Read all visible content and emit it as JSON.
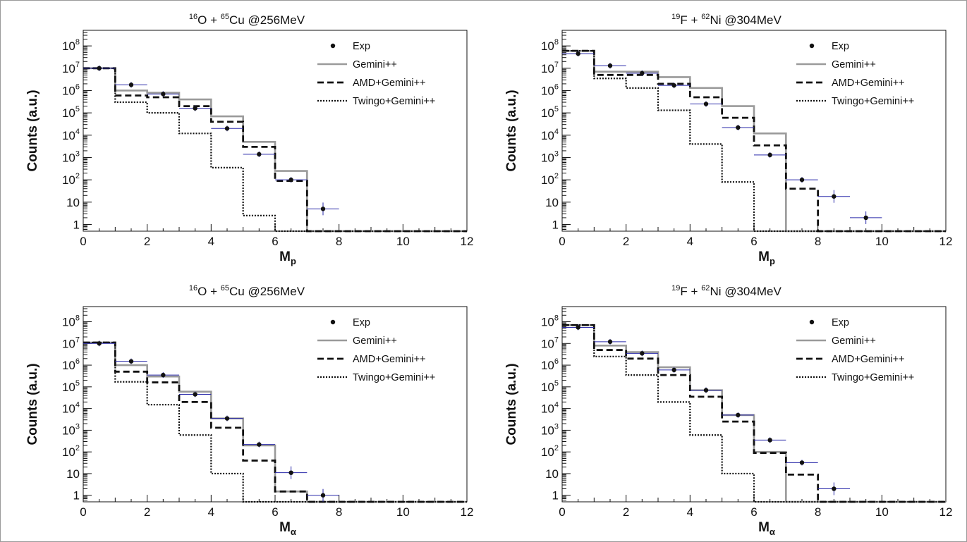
{
  "chart_data": [
    {
      "type": "step",
      "title": "¹⁶O + ⁶⁵Cu @256MeV",
      "title_parts": {
        "a_mass": "16",
        "a_elem": "O",
        "b_mass": "65",
        "b_elem": "Cu",
        "energy": "@256MeV"
      },
      "xlabel": "M",
      "xlabel_sub": "p",
      "ylabel": "Counts (a.u.)",
      "xlim": [
        0,
        12
      ],
      "ylim": [
        0.5,
        500000000
      ],
      "yscale": "log",
      "legend": "top-right",
      "series": [
        {
          "name": "Exp",
          "style": "points",
          "x": [
            0.5,
            1.5,
            2.5,
            3.5,
            4.5,
            5.5,
            6.5,
            7.5
          ],
          "values": [
            10000000,
            1800000,
            700000,
            160000,
            20000,
            1400,
            100,
            5
          ]
        },
        {
          "name": "Gemini++",
          "style": "solid-gray",
          "values": [
            10000000,
            1000000,
            800000,
            400000,
            70000,
            5000,
            250,
            0.5,
            0.5,
            0.5,
            0.5,
            0.5
          ]
        },
        {
          "name": "AMD+Gemini++",
          "style": "dashed",
          "values": [
            10000000,
            600000,
            500000,
            200000,
            40000,
            3000,
            90,
            0.5,
            0.5,
            0.5,
            0.5,
            0.5
          ]
        },
        {
          "name": "Twingo+Gemini++",
          "style": "dotted",
          "values": [
            10000000,
            300000,
            100000,
            12000,
            350,
            2.5,
            0.5,
            0.5,
            0.5,
            0.5,
            0.5,
            0.5
          ]
        }
      ]
    },
    {
      "type": "step",
      "title": "¹⁹F + ⁶²Ni @304MeV",
      "title_parts": {
        "a_mass": "19",
        "a_elem": "F",
        "b_mass": "62",
        "b_elem": "Ni",
        "energy": "@304MeV"
      },
      "xlabel": "M",
      "xlabel_sub": "p",
      "ylabel": "Counts (a.u.)",
      "xlim": [
        0,
        12
      ],
      "ylim": [
        0.5,
        500000000
      ],
      "yscale": "log",
      "legend": "top-right",
      "series": [
        {
          "name": "Exp",
          "style": "points",
          "x": [
            0.5,
            1.5,
            2.5,
            3.5,
            4.5,
            5.5,
            6.5,
            7.5,
            8.5,
            9.5
          ],
          "values": [
            45000000,
            13000000,
            6000000,
            1700000,
            250000,
            22000,
            1300,
            100,
            18,
            2
          ]
        },
        {
          "name": "Gemini++",
          "style": "solid-gray",
          "values": [
            60000000,
            7000000,
            7000000,
            4000000,
            1300000,
            200000,
            12000,
            0.5,
            0.5,
            0.5,
            0.5,
            0.5
          ]
        },
        {
          "name": "AMD+Gemini++",
          "style": "dashed",
          "values": [
            60000000,
            5000000,
            5000000,
            2000000,
            500000,
            60000,
            3500,
            40,
            0.5,
            0.5,
            0.5,
            0.5
          ]
        },
        {
          "name": "Twingo+Gemini++",
          "style": "dotted",
          "values": [
            60000000,
            3500000,
            1300000,
            130000,
            4000,
            80,
            0.5,
            0.5,
            0.5,
            0.5,
            0.5,
            0.5
          ]
        }
      ]
    },
    {
      "type": "step",
      "title": "¹⁶O + ⁶⁵Cu @256MeV",
      "title_parts": {
        "a_mass": "16",
        "a_elem": "O",
        "b_mass": "65",
        "b_elem": "Cu",
        "energy": "@256MeV"
      },
      "xlabel": "M",
      "xlabel_sub": "α",
      "ylabel": "Counts (a.u.)",
      "xlim": [
        0,
        12
      ],
      "ylim": [
        0.5,
        500000000
      ],
      "yscale": "log",
      "legend": "top-right",
      "series": [
        {
          "name": "Exp",
          "style": "points",
          "x": [
            0.5,
            1.5,
            2.5,
            3.5,
            4.5,
            5.5,
            6.5,
            7.5
          ],
          "values": [
            10000000,
            1500000,
            350000,
            45000,
            3500,
            220,
            11,
            1
          ]
        },
        {
          "name": "Gemini++",
          "style": "solid-gray",
          "values": [
            11000000,
            1000000,
            300000,
            60000,
            3500,
            200,
            1.5,
            0.5,
            0.5,
            0.5,
            0.5,
            0.5
          ]
        },
        {
          "name": "AMD+Gemini++",
          "style": "dashed",
          "values": [
            11000000,
            500000,
            160000,
            20000,
            1300,
            40,
            1.5,
            0.5,
            0.5,
            0.5,
            0.5,
            0.5
          ]
        },
        {
          "name": "Twingo+Gemini++",
          "style": "dotted",
          "values": [
            11000000,
            170000,
            15000,
            600,
            10,
            0.5,
            0.5,
            0.5,
            0.5,
            0.5,
            0.5,
            0.5
          ]
        }
      ]
    },
    {
      "type": "step",
      "title": "¹⁹F + ⁶²Ni @304MeV",
      "title_parts": {
        "a_mass": "19",
        "a_elem": "F",
        "b_mass": "62",
        "b_elem": "Ni",
        "energy": "@304MeV"
      },
      "xlabel": "M",
      "xlabel_sub": "α",
      "ylabel": "Counts (a.u.)",
      "xlim": [
        0,
        12
      ],
      "ylim": [
        0.5,
        500000000
      ],
      "yscale": "log",
      "legend": "top-right",
      "series": [
        {
          "name": "Exp",
          "style": "points",
          "x": [
            0.5,
            1.5,
            2.5,
            3.5,
            4.5,
            5.5,
            6.5,
            7.5,
            8.5
          ],
          "values": [
            55000000,
            12000000,
            3500000,
            600000,
            70000,
            5000,
            350,
            32,
            2
          ]
        },
        {
          "name": "Gemini++",
          "style": "solid-gray",
          "values": [
            70000000,
            8000000,
            4000000,
            800000,
            70000,
            5000,
            100,
            0.5,
            0.5,
            0.5,
            0.5,
            0.5
          ]
        },
        {
          "name": "AMD+Gemini++",
          "style": "dashed",
          "values": [
            70000000,
            5000000,
            2000000,
            350000,
            35000,
            2500,
            90,
            9,
            0.5,
            0.5,
            0.5,
            0.5
          ]
        },
        {
          "name": "Twingo+Gemini++",
          "style": "dotted",
          "values": [
            70000000,
            2500000,
            350000,
            20000,
            600,
            10,
            0.5,
            0.5,
            0.5,
            0.5,
            0.5,
            0.5
          ]
        }
      ]
    }
  ],
  "axis": {
    "x_ticks": [
      "0",
      "2",
      "4",
      "6",
      "8",
      "10",
      "12"
    ],
    "y_ticks": [
      {
        "v": 1,
        "base": "1",
        "exp": ""
      },
      {
        "v": 10,
        "base": "10",
        "exp": ""
      },
      {
        "v": 100,
        "base": "10",
        "exp": "2"
      },
      {
        "v": 1000,
        "base": "10",
        "exp": "3"
      },
      {
        "v": 10000,
        "base": "10",
        "exp": "4"
      },
      {
        "v": 100000,
        "base": "10",
        "exp": "5"
      },
      {
        "v": 1000000,
        "base": "10",
        "exp": "6"
      },
      {
        "v": 10000000,
        "base": "10",
        "exp": "7"
      },
      {
        "v": 100000000,
        "base": "10",
        "exp": "8"
      }
    ]
  },
  "colors": {
    "exp_points": "#111111",
    "exp_errorbar": "#2a2aaa",
    "gemini": "#9a9a9a",
    "amd": "#111111",
    "twingo": "#111111",
    "axis": "#111111",
    "frame": "#9a9a9a"
  }
}
